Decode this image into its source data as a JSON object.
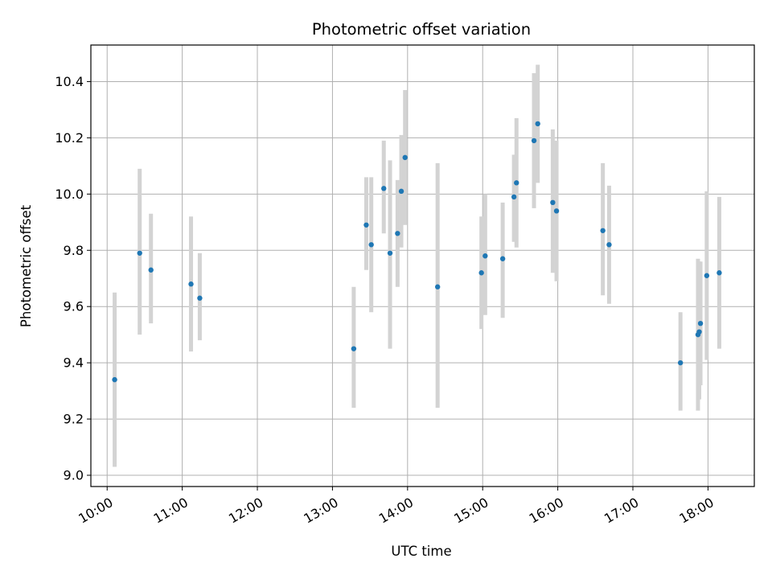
{
  "chart_data": {
    "type": "scatter",
    "title": "Photometric offset variation",
    "xlabel": "UTC time",
    "ylabel": "Photometric offset",
    "x_tick_labels": [
      "10:00",
      "11:00",
      "12:00",
      "13:00",
      "14:00",
      "15:00",
      "16:00",
      "17:00",
      "18:00"
    ],
    "y_tick_labels": [
      "9.0",
      "9.2",
      "9.4",
      "9.6",
      "9.8",
      "10.0",
      "10.2",
      "10.4"
    ],
    "xlim": [
      "09:47",
      "18:37"
    ],
    "ylim": [
      8.96,
      10.53
    ],
    "grid": true,
    "colors": {
      "marker": "#1f77b4",
      "errorbar": "#d3d3d3",
      "grid": "#b0b0b0"
    },
    "points": [
      {
        "x": "10:06",
        "y": 9.34,
        "ylo": 9.03,
        "yhi": 9.65
      },
      {
        "x": "10:26",
        "y": 9.79,
        "ylo": 9.5,
        "yhi": 10.09
      },
      {
        "x": "10:35",
        "y": 9.73,
        "ylo": 9.54,
        "yhi": 9.93
      },
      {
        "x": "11:07",
        "y": 9.68,
        "ylo": 9.44,
        "yhi": 9.92
      },
      {
        "x": "11:14",
        "y": 9.63,
        "ylo": 9.48,
        "yhi": 9.79
      },
      {
        "x": "13:17",
        "y": 9.45,
        "ylo": 9.24,
        "yhi": 9.67
      },
      {
        "x": "13:27",
        "y": 9.89,
        "ylo": 9.73,
        "yhi": 10.06
      },
      {
        "x": "13:31",
        "y": 9.82,
        "ylo": 9.58,
        "yhi": 10.06
      },
      {
        "x": "13:41",
        "y": 10.02,
        "ylo": 9.86,
        "yhi": 10.19
      },
      {
        "x": "13:46",
        "y": 9.79,
        "ylo": 9.45,
        "yhi": 10.12
      },
      {
        "x": "13:52",
        "y": 9.86,
        "ylo": 9.67,
        "yhi": 10.05
      },
      {
        "x": "13:55",
        "y": 10.01,
        "ylo": 9.81,
        "yhi": 10.21
      },
      {
        "x": "13:58",
        "y": 10.13,
        "ylo": 9.89,
        "yhi": 10.37
      },
      {
        "x": "14:24",
        "y": 9.67,
        "ylo": 9.24,
        "yhi": 10.11
      },
      {
        "x": "14:59",
        "y": 9.72,
        "ylo": 9.52,
        "yhi": 9.92
      },
      {
        "x": "15:02",
        "y": 9.78,
        "ylo": 9.57,
        "yhi": 10.0
      },
      {
        "x": "15:16",
        "y": 9.77,
        "ylo": 9.56,
        "yhi": 9.97
      },
      {
        "x": "15:25",
        "y": 9.99,
        "ylo": 9.83,
        "yhi": 10.14
      },
      {
        "x": "15:27",
        "y": 10.04,
        "ylo": 9.81,
        "yhi": 10.27
      },
      {
        "x": "15:41",
        "y": 10.19,
        "ylo": 9.95,
        "yhi": 10.43
      },
      {
        "x": "15:44",
        "y": 10.25,
        "ylo": 10.04,
        "yhi": 10.46
      },
      {
        "x": "15:56",
        "y": 9.97,
        "ylo": 9.72,
        "yhi": 10.23
      },
      {
        "x": "15:59",
        "y": 9.94,
        "ylo": 9.69,
        "yhi": 10.19
      },
      {
        "x": "16:36",
        "y": 9.87,
        "ylo": 9.64,
        "yhi": 10.11
      },
      {
        "x": "16:41",
        "y": 9.82,
        "ylo": 9.61,
        "yhi": 10.03
      },
      {
        "x": "17:38",
        "y": 9.4,
        "ylo": 9.23,
        "yhi": 9.58
      },
      {
        "x": "17:52",
        "y": 9.5,
        "ylo": 9.23,
        "yhi": 9.77
      },
      {
        "x": "17:53",
        "y": 9.51,
        "ylo": 9.27,
        "yhi": 9.76
      },
      {
        "x": "17:54",
        "y": 9.54,
        "ylo": 9.32,
        "yhi": 9.76
      },
      {
        "x": "17:59",
        "y": 9.71,
        "ylo": 9.41,
        "yhi": 10.01
      },
      {
        "x": "18:09",
        "y": 9.72,
        "ylo": 9.45,
        "yhi": 9.99
      }
    ]
  }
}
